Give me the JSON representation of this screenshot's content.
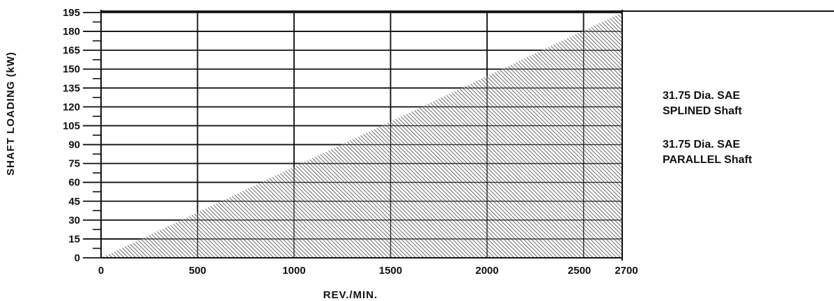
{
  "chart_data": {
    "type": "area",
    "xlabel": "REV./MIN.",
    "ylabel": "SHAFT LOADING (kW)",
    "x_ticks": [
      0,
      500,
      1000,
      1500,
      2000,
      2500,
      2700
    ],
    "y_ticks": [
      0,
      15,
      30,
      45,
      60,
      75,
      90,
      105,
      120,
      135,
      150,
      165,
      180,
      195
    ],
    "xlim": [
      0,
      2700
    ],
    "ylim": [
      0,
      195
    ],
    "grid": true,
    "series": [
      {
        "x": [
          0,
          2700
        ],
        "y": [
          0,
          195
        ],
        "fill": "hatched"
      }
    ]
  },
  "notes": [
    {
      "line1": "31.75 Dia. SAE",
      "line2": "SPLINED Shaft"
    },
    {
      "line1": "31.75 Dia. SAE",
      "line2": "PARALLEL Shaft"
    }
  ]
}
